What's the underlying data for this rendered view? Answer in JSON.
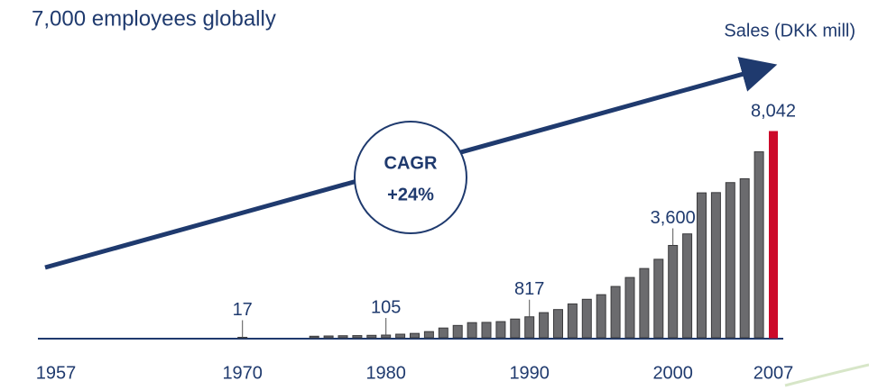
{
  "chart_data": {
    "type": "bar",
    "title": "7,000 employees globally",
    "y_label": "Sales (DKK mill)",
    "annotation": {
      "line1": "CAGR",
      "line2": "+24%"
    },
    "x": [
      1970,
      1975,
      1976,
      1977,
      1978,
      1979,
      1980,
      1981,
      1982,
      1983,
      1984,
      1985,
      1986,
      1987,
      1988,
      1989,
      1990,
      1991,
      1992,
      1993,
      1994,
      1995,
      1996,
      1997,
      1998,
      1999,
      2000,
      2001,
      2002,
      2003,
      2004,
      2005,
      2006,
      2007
    ],
    "values": [
      17,
      60,
      70,
      80,
      85,
      95,
      105,
      140,
      170,
      240,
      380,
      480,
      590,
      600,
      630,
      730,
      817,
      980,
      1100,
      1320,
      1500,
      1680,
      2000,
      2350,
      2700,
      3060,
      3600,
      4050,
      5650,
      5660,
      6050,
      6200,
      7250,
      8042
    ],
    "value_labels": [
      "17",
      null,
      null,
      null,
      null,
      null,
      "105",
      null,
      null,
      null,
      null,
      null,
      null,
      null,
      null,
      null,
      "817",
      null,
      null,
      null,
      null,
      null,
      null,
      null,
      null,
      null,
      "3,600",
      null,
      null,
      null,
      null,
      null,
      null,
      "8,042"
    ],
    "color": "#6b6b6e",
    "last_color": "#cc0a2a",
    "xlim": [
      1957,
      2007
    ],
    "xticks": [
      1957,
      1970,
      1980,
      1990,
      2000,
      2007
    ]
  }
}
